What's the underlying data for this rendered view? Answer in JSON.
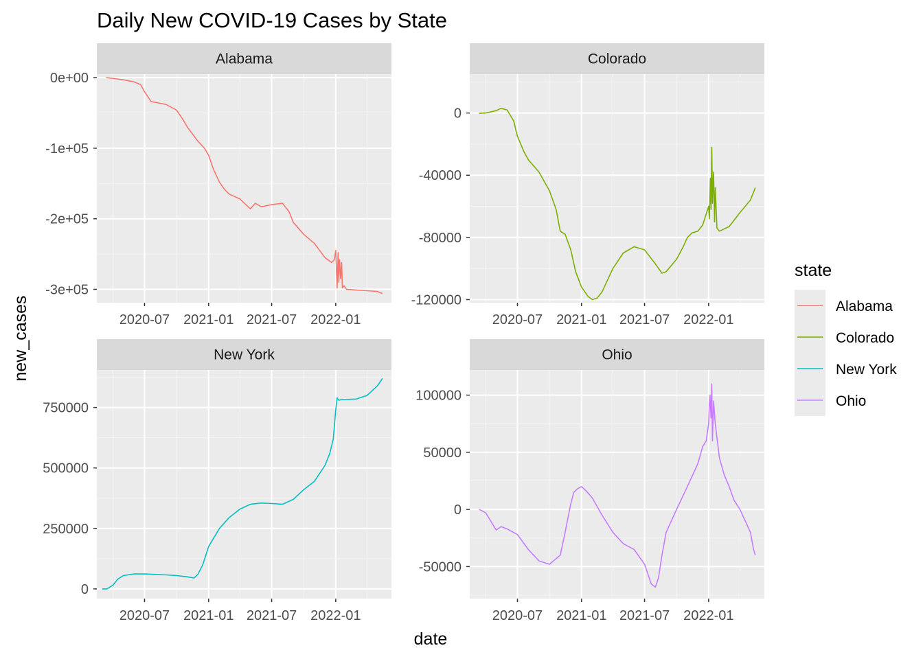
{
  "chart_data": {
    "type": "line",
    "title": "Daily New COVID-19 Cases by State",
    "xlabel": "date",
    "ylabel": "new_cases",
    "x_ticks": [
      "2020-07",
      "2021-01",
      "2021-07",
      "2022-01"
    ],
    "x_range": [
      "2020-02-15",
      "2022-06-10"
    ],
    "legend": {
      "title": "state",
      "placement": "right",
      "items": [
        "Alabama",
        "Colorado",
        "New York",
        "Ohio"
      ]
    },
    "grid": true,
    "facets": [
      {
        "name": "Alabama",
        "color": "#F8766D",
        "ylim": [
          -319000,
          5000
        ],
        "y_ticks": [
          {
            "value": 0,
            "label": "0e+00"
          },
          {
            "value": -100000,
            "label": "-1e+05"
          },
          {
            "value": -200000,
            "label": "-2e+05"
          },
          {
            "value": -300000,
            "label": "-3e+05"
          }
        ],
        "series": {
          "x": [
            "2020-03-13",
            "2020-04-01",
            "2020-05-01",
            "2020-06-01",
            "2020-06-20",
            "2020-07-01",
            "2020-07-20",
            "2020-08-01",
            "2020-09-01",
            "2020-10-01",
            "2020-10-20",
            "2020-11-01",
            "2020-12-01",
            "2020-12-20",
            "2021-01-01",
            "2021-01-15",
            "2021-02-01",
            "2021-02-15",
            "2021-03-01",
            "2021-04-01",
            "2021-05-01",
            "2021-05-15",
            "2021-06-01",
            "2021-07-01",
            "2021-08-01",
            "2021-08-20",
            "2021-09-01",
            "2021-10-01",
            "2021-11-01",
            "2021-12-01",
            "2021-12-20",
            "2021-12-28",
            "2022-01-01",
            "2022-01-03",
            "2022-01-05",
            "2022-01-08",
            "2022-01-10",
            "2022-01-12",
            "2022-01-15",
            "2022-01-18",
            "2022-01-20",
            "2022-01-25",
            "2022-02-01",
            "2022-03-01",
            "2022-04-01",
            "2022-05-01",
            "2022-05-15"
          ],
          "y": [
            0,
            -1000,
            -3000,
            -6000,
            -10000,
            -20000,
            -34000,
            -35000,
            -38000,
            -46000,
            -60000,
            -70000,
            -90000,
            -100000,
            -110000,
            -130000,
            -148000,
            -158000,
            -165000,
            -172000,
            -186000,
            -178000,
            -183000,
            -180000,
            -178000,
            -190000,
            -205000,
            -222000,
            -235000,
            -255000,
            -262000,
            -258000,
            -245000,
            -272000,
            -298000,
            -248000,
            -290000,
            -258000,
            -285000,
            -262000,
            -298000,
            -295000,
            -300000,
            -301000,
            -302000,
            -303000,
            -306000
          ]
        }
      },
      {
        "name": "Colorado",
        "color": "#7CAE00",
        "ylim": [
          -122000,
          25000
        ],
        "y_ticks": [
          {
            "value": 0,
            "label": "0"
          },
          {
            "value": -40000,
            "label": "-40000"
          },
          {
            "value": -80000,
            "label": "-80000"
          },
          {
            "value": -120000,
            "label": "-120000"
          }
        ],
        "series": {
          "x": [
            "2020-03-13",
            "2020-04-01",
            "2020-05-01",
            "2020-05-15",
            "2020-06-01",
            "2020-06-20",
            "2020-07-01",
            "2020-07-20",
            "2020-08-01",
            "2020-09-01",
            "2020-10-01",
            "2020-10-20",
            "2020-11-01",
            "2020-11-15",
            "2020-12-01",
            "2020-12-15",
            "2021-01-01",
            "2021-01-20",
            "2021-02-01",
            "2021-02-15",
            "2021-03-01",
            "2021-04-01",
            "2021-05-01",
            "2021-06-01",
            "2021-07-01",
            "2021-08-01",
            "2021-08-20",
            "2021-09-01",
            "2021-10-01",
            "2021-10-20",
            "2021-11-01",
            "2021-11-15",
            "2021-12-01",
            "2021-12-15",
            "2022-01-01",
            "2022-01-03",
            "2022-01-06",
            "2022-01-08",
            "2022-01-10",
            "2022-01-12",
            "2022-01-15",
            "2022-01-18",
            "2022-01-20",
            "2022-01-25",
            "2022-02-01",
            "2022-03-01",
            "2022-04-01",
            "2022-05-01",
            "2022-05-15"
          ],
          "y": [
            -200,
            0,
            1500,
            3000,
            2000,
            -5000,
            -15000,
            -25000,
            -30000,
            -38000,
            -50000,
            -62000,
            -76000,
            -78000,
            -88000,
            -102000,
            -112000,
            -118000,
            -120000,
            -119000,
            -115000,
            -100000,
            -90000,
            -86000,
            -88000,
            -97000,
            -103000,
            -102000,
            -94000,
            -86000,
            -80000,
            -77000,
            -76000,
            -72000,
            -60000,
            -68000,
            -42000,
            -62000,
            -22000,
            -58000,
            -38000,
            -70000,
            -48000,
            -74000,
            -76000,
            -73000,
            -64000,
            -56000,
            -48000
          ]
        }
      },
      {
        "name": "New York",
        "color": "#00BFC4",
        "ylim": [
          -40000,
          905000
        ],
        "y_ticks": [
          {
            "value": 0,
            "label": "0"
          },
          {
            "value": 250000,
            "label": "250000"
          },
          {
            "value": 500000,
            "label": "500000"
          },
          {
            "value": 750000,
            "label": "750000"
          }
        ],
        "series": {
          "x": [
            "2020-03-01",
            "2020-03-15",
            "2020-04-01",
            "2020-04-15",
            "2020-05-01",
            "2020-06-01",
            "2020-07-01",
            "2020-08-01",
            "2020-09-01",
            "2020-10-01",
            "2020-11-01",
            "2020-11-20",
            "2020-12-01",
            "2020-12-15",
            "2021-01-01",
            "2021-02-01",
            "2021-03-01",
            "2021-04-01",
            "2021-05-01",
            "2021-06-01",
            "2021-07-01",
            "2021-08-01",
            "2021-09-01",
            "2021-10-01",
            "2021-11-01",
            "2021-12-01",
            "2021-12-15",
            "2021-12-25",
            "2022-01-01",
            "2022-01-05",
            "2022-01-10",
            "2022-01-20",
            "2022-02-01",
            "2022-03-01",
            "2022-04-01",
            "2022-05-01",
            "2022-05-15"
          ],
          "y": [
            0,
            0,
            15000,
            40000,
            55000,
            62000,
            62000,
            60000,
            58000,
            55000,
            50000,
            45000,
            60000,
            100000,
            175000,
            250000,
            295000,
            330000,
            350000,
            355000,
            353000,
            350000,
            370000,
            410000,
            445000,
            510000,
            560000,
            620000,
            740000,
            790000,
            780000,
            783000,
            783000,
            785000,
            800000,
            840000,
            870000
          ]
        }
      },
      {
        "name": "Ohio",
        "color": "#C77CFF",
        "ylim": [
          -78000,
          122000
        ],
        "y_ticks": [
          {
            "value": 100000,
            "label": "100000"
          },
          {
            "value": 50000,
            "label": "50000"
          },
          {
            "value": 0,
            "label": "0"
          },
          {
            "value": -50000,
            "label": "-50000"
          }
        ],
        "series": {
          "x": [
            "2020-03-13",
            "2020-04-01",
            "2020-04-15",
            "2020-05-01",
            "2020-05-15",
            "2020-06-01",
            "2020-07-01",
            "2020-08-01",
            "2020-09-01",
            "2020-10-01",
            "2020-11-01",
            "2020-11-15",
            "2020-12-01",
            "2020-12-10",
            "2020-12-20",
            "2021-01-01",
            "2021-01-15",
            "2021-02-01",
            "2021-03-01",
            "2021-04-01",
            "2021-05-01",
            "2021-06-01",
            "2021-07-01",
            "2021-07-20",
            "2021-08-01",
            "2021-08-10",
            "2021-08-20",
            "2021-09-01",
            "2021-10-01",
            "2021-11-01",
            "2021-12-01",
            "2021-12-15",
            "2021-12-25",
            "2022-01-01",
            "2022-01-03",
            "2022-01-05",
            "2022-01-08",
            "2022-01-10",
            "2022-01-12",
            "2022-01-15",
            "2022-01-20",
            "2022-02-01",
            "2022-02-15",
            "2022-03-01",
            "2022-03-15",
            "2022-04-01",
            "2022-05-01",
            "2022-05-10",
            "2022-05-15"
          ],
          "y": [
            0,
            -3000,
            -10000,
            -18000,
            -15000,
            -17000,
            -22000,
            -35000,
            -45000,
            -48000,
            -40000,
            -20000,
            5000,
            15000,
            18000,
            20000,
            16000,
            10000,
            -5000,
            -20000,
            -30000,
            -35000,
            -48000,
            -65000,
            -68000,
            -60000,
            -40000,
            -20000,
            0,
            20000,
            40000,
            55000,
            60000,
            75000,
            92000,
            100000,
            80000,
            110000,
            60000,
            95000,
            75000,
            45000,
            30000,
            20000,
            8000,
            0,
            -20000,
            -35000,
            -40000
          ]
        }
      }
    ]
  }
}
